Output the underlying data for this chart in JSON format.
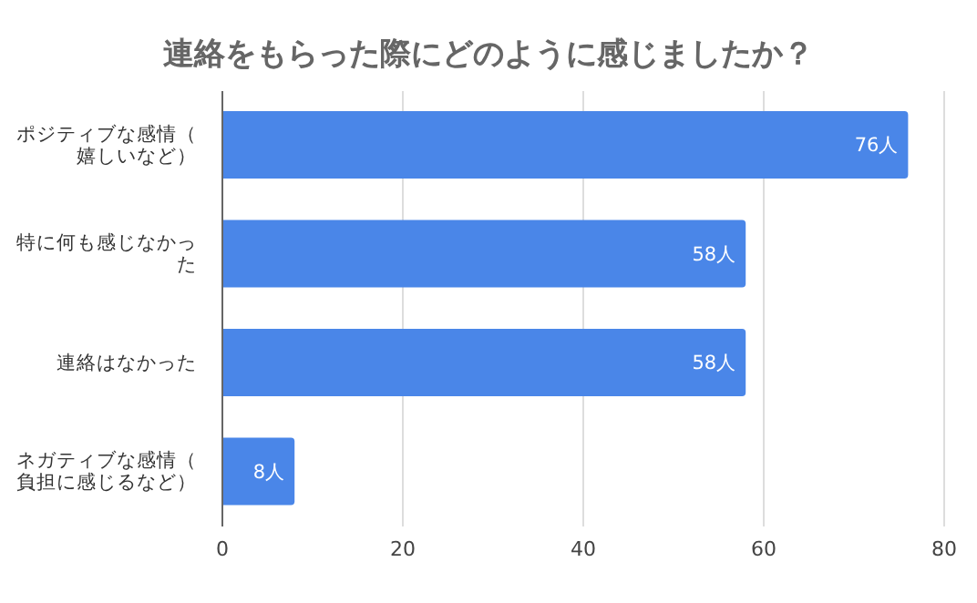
{
  "chart_data": {
    "type": "bar",
    "orientation": "horizontal",
    "title": "連絡をもらった際にどのように感じましたか？",
    "categories": [
      "ポジティブな感情（嬉しいなど）",
      "特に何も感じなかった",
      "連絡はなかった",
      "ネガティブな感情（負担に感じるなど）"
    ],
    "values": [
      76,
      58,
      58,
      8
    ],
    "color": "#4a86e8",
    "value_labels": [
      "76人",
      "58人",
      "58人",
      "8人"
    ],
    "xlim": [
      0,
      80
    ],
    "xticks": [
      0,
      20,
      40,
      60,
      80
    ],
    "grid": "x"
  }
}
